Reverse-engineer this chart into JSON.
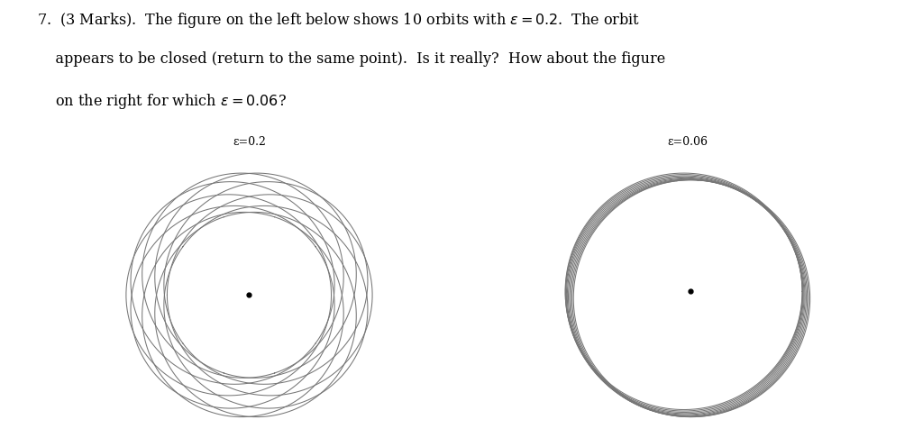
{
  "epsilon1": 0.2,
  "epsilon2": 0.06,
  "n_orbits": 10,
  "label1": "ε=0.2",
  "label2": "ε=0.06",
  "line_color": "#777777",
  "line_width": 0.75,
  "dot_color": "black",
  "dot_size": 3.5,
  "background_color": "#ffffff",
  "n_points": 2000,
  "label_fontsize": 9,
  "text_fontsize": 11.5,
  "precession_factor1": 0.36,
  "precession_factor2": 0.36
}
